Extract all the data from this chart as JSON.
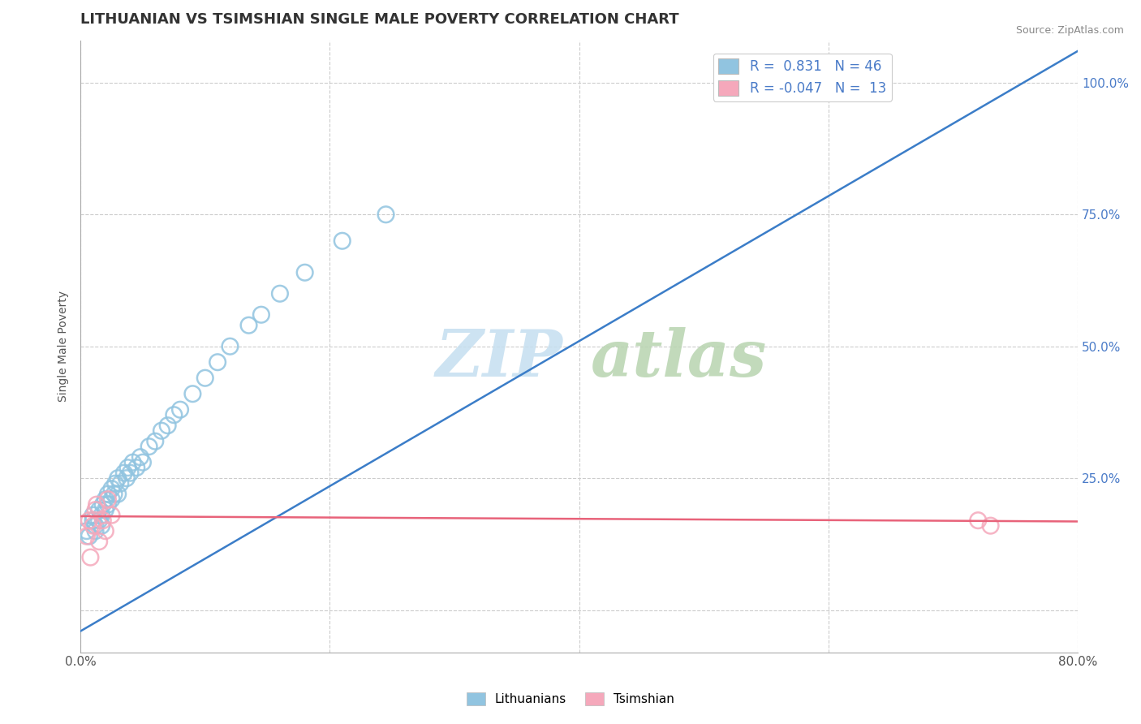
{
  "title": "LITHUANIAN VS TSIMSHIAN SINGLE MALE POVERTY CORRELATION CHART",
  "source_text": "Source: ZipAtlas.com",
  "ylabel": "Single Male Poverty",
  "xlim": [
    0.0,
    0.8
  ],
  "ylim": [
    -0.08,
    1.08
  ],
  "x_ticks": [
    0.0,
    0.2,
    0.4,
    0.6,
    0.8
  ],
  "x_tick_labels": [
    "0.0%",
    "",
    "",
    "",
    "80.0%"
  ],
  "y_ticks": [
    0.0,
    0.25,
    0.5,
    0.75,
    1.0
  ],
  "y_tick_labels": [
    "",
    "25.0%",
    "50.0%",
    "75.0%",
    "100.0%"
  ],
  "legend_blue_r": "0.831",
  "legend_blue_n": "46",
  "legend_pink_r": "-0.047",
  "legend_pink_n": "13",
  "blue_color": "#91C4E0",
  "pink_color": "#F5A8BB",
  "blue_line_color": "#3B7DC8",
  "pink_line_color": "#E8637A",
  "blue_scatter_x": [
    0.005,
    0.007,
    0.01,
    0.01,
    0.012,
    0.012,
    0.015,
    0.015,
    0.017,
    0.017,
    0.018,
    0.02,
    0.02,
    0.022,
    0.022,
    0.025,
    0.025,
    0.027,
    0.028,
    0.03,
    0.03,
    0.032,
    0.035,
    0.037,
    0.038,
    0.04,
    0.042,
    0.045,
    0.048,
    0.05,
    0.055,
    0.06,
    0.065,
    0.07,
    0.075,
    0.08,
    0.09,
    0.1,
    0.11,
    0.12,
    0.135,
    0.145,
    0.16,
    0.18,
    0.21,
    0.245
  ],
  "blue_scatter_y": [
    0.15,
    0.14,
    0.17,
    0.18,
    0.15,
    0.16,
    0.17,
    0.19,
    0.16,
    0.18,
    0.2,
    0.19,
    0.21,
    0.2,
    0.22,
    0.21,
    0.23,
    0.22,
    0.24,
    0.22,
    0.25,
    0.24,
    0.26,
    0.25,
    0.27,
    0.26,
    0.28,
    0.27,
    0.29,
    0.28,
    0.31,
    0.32,
    0.34,
    0.35,
    0.37,
    0.38,
    0.41,
    0.44,
    0.47,
    0.5,
    0.54,
    0.56,
    0.6,
    0.64,
    0.7,
    0.75
  ],
  "pink_scatter_x": [
    0.005,
    0.007,
    0.008,
    0.01,
    0.012,
    0.013,
    0.015,
    0.018,
    0.02,
    0.022,
    0.025,
    0.72,
    0.73
  ],
  "pink_scatter_y": [
    0.14,
    0.17,
    0.1,
    0.16,
    0.19,
    0.2,
    0.13,
    0.17,
    0.15,
    0.21,
    0.18,
    0.17,
    0.16
  ],
  "blue_line_x": [
    0.0,
    0.8
  ],
  "blue_line_y": [
    -0.04,
    1.06
  ],
  "pink_line_x": [
    0.0,
    0.8
  ],
  "pink_line_y": [
    0.178,
    0.168
  ],
  "title_fontsize": 13,
  "label_fontsize": 10,
  "tick_fontsize": 11,
  "source_fontsize": 9,
  "background_color": "#ffffff",
  "grid_color": "#cccccc",
  "ytick_color": "#4a7bc8",
  "xtick_color": "#555555"
}
